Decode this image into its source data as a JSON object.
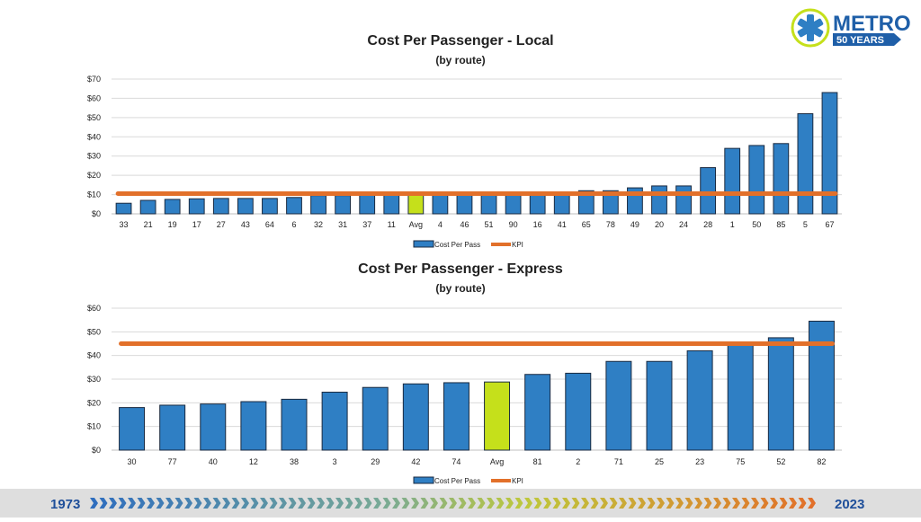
{
  "logo": {
    "brand": "METRO",
    "tagline": "50 YEARS"
  },
  "footer": {
    "start_year": "1973",
    "end_year": "2023"
  },
  "colors": {
    "bar": "#2f7fc4",
    "bar_highlight": "#c5e01b",
    "kpi": "#e2702a",
    "bar_border": "#1a2a40",
    "grid": "#d9d9d9"
  },
  "chart_data": [
    {
      "id": "local",
      "type": "bar",
      "title": "Cost Per Passenger - Local",
      "subtitle": "(by route)",
      "categories": [
        "33",
        "21",
        "19",
        "17",
        "27",
        "43",
        "64",
        "6",
        "32",
        "31",
        "37",
        "11",
        "Avg",
        "4",
        "46",
        "51",
        "90",
        "16",
        "41",
        "65",
        "78",
        "49",
        "20",
        "24",
        "28",
        "1",
        "50",
        "85",
        "5",
        "67"
      ],
      "series": [
        {
          "name": "Cost Per Pass",
          "type": "bar",
          "values": [
            5.5,
            7,
            7.5,
            7.8,
            8,
            8,
            8,
            8.5,
            9.5,
            9.5,
            10,
            10,
            10.5,
            10.5,
            10.5,
            10.5,
            10.5,
            11,
            11,
            12,
            12,
            13.5,
            14.5,
            14.5,
            24,
            34,
            35.5,
            36.5,
            52,
            63
          ]
        },
        {
          "name": "KPI",
          "type": "line",
          "value": 10.5
        }
      ],
      "highlight_category": "Avg",
      "yticks": [
        "$0",
        "$10",
        "$20",
        "$30",
        "$40",
        "$50",
        "$60",
        "$70"
      ],
      "ylim": [
        0,
        70
      ],
      "legend": [
        "Cost Per Pass",
        "KPI"
      ],
      "legend_position": "bottom"
    },
    {
      "id": "express",
      "type": "bar",
      "title": "Cost Per Passenger - Express",
      "subtitle": "(by route)",
      "categories": [
        "30",
        "77",
        "40",
        "12",
        "38",
        "3",
        "29",
        "42",
        "74",
        "Avg",
        "81",
        "2",
        "71",
        "25",
        "23",
        "75",
        "52",
        "82"
      ],
      "series": [
        {
          "name": "Cost Per Pass",
          "type": "bar",
          "values": [
            18,
            19,
            19.5,
            20.5,
            21.5,
            24.5,
            26.5,
            28,
            28.5,
            28.8,
            32,
            32.5,
            37.5,
            37.5,
            42,
            45,
            47.5,
            54.5
          ]
        },
        {
          "name": "KPI",
          "type": "line",
          "value": 45
        }
      ],
      "highlight_category": "Avg",
      "yticks": [
        "$0",
        "$10",
        "$20",
        "$30",
        "$40",
        "$50",
        "$60"
      ],
      "ylim": [
        0,
        60
      ],
      "legend": [
        "Cost Per Pass",
        "KPI"
      ],
      "legend_position": "bottom"
    }
  ]
}
